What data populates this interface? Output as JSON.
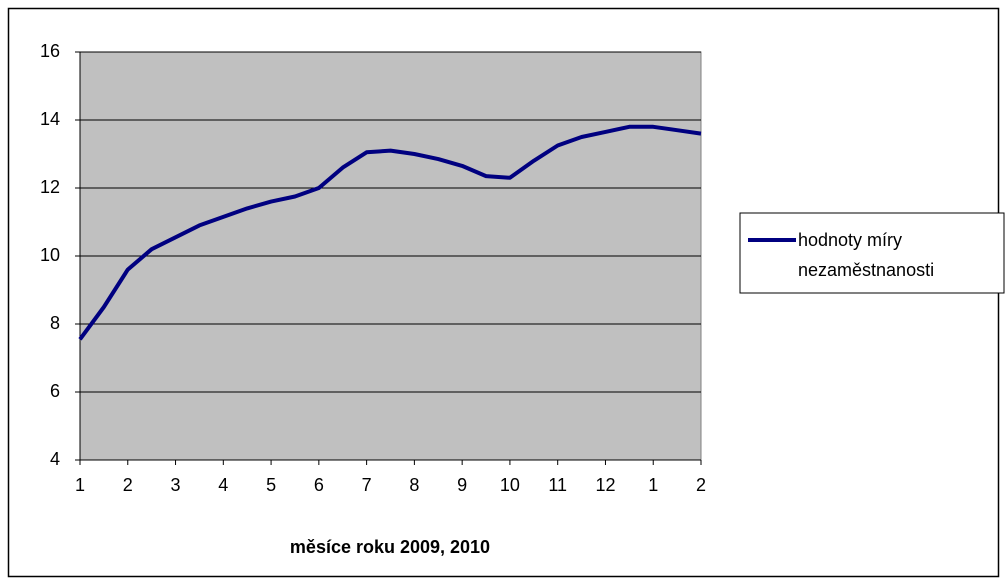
{
  "chart_data": {
    "type": "line",
    "xlabel": "měsíce roku 2009, 2010",
    "categories": [
      "1",
      null,
      "2",
      null,
      "3",
      null,
      "4",
      null,
      "5",
      null,
      "6",
      null,
      "7",
      null,
      "8",
      null,
      "9",
      null,
      "10",
      null,
      "11",
      null,
      "12",
      null,
      "1",
      null,
      "2"
    ],
    "series": [
      {
        "name": "hodnoty míry nezaměstnanosti",
        "color": "#000080",
        "values": [
          7.55,
          8.5,
          9.6,
          10.2,
          10.55,
          10.9,
          11.15,
          11.4,
          11.6,
          11.75,
          12.0,
          12.6,
          13.05,
          13.1,
          13.0,
          12.85,
          12.65,
          12.35,
          12.3,
          12.8,
          13.25,
          13.5,
          13.65,
          13.8,
          13.8,
          13.7,
          13.6
        ]
      }
    ],
    "ylim": [
      4,
      16
    ],
    "yticks": [
      4,
      6,
      8,
      10,
      12,
      14,
      16
    ],
    "grid": true,
    "legend": "right"
  }
}
